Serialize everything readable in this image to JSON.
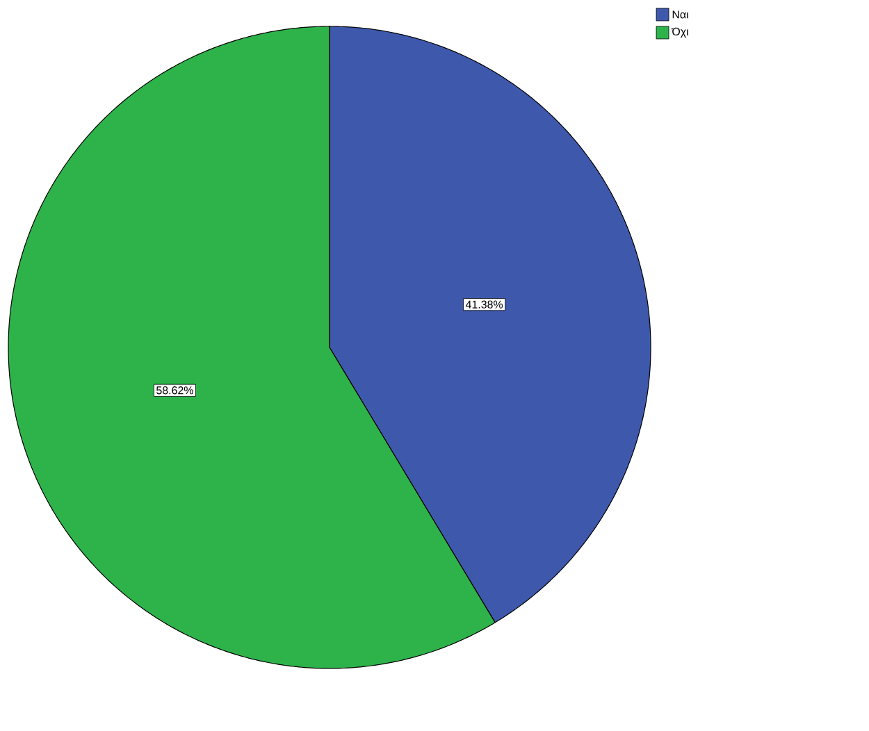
{
  "chart_data": {
    "type": "pie",
    "categories": [
      "Ναι",
      "Όχι"
    ],
    "values": [
      41.38,
      58.62
    ],
    "colors": [
      "#3e58ac",
      "#2db34a"
    ],
    "value_labels": [
      "41.38%",
      "58.62%"
    ],
    "legend": "top right"
  }
}
